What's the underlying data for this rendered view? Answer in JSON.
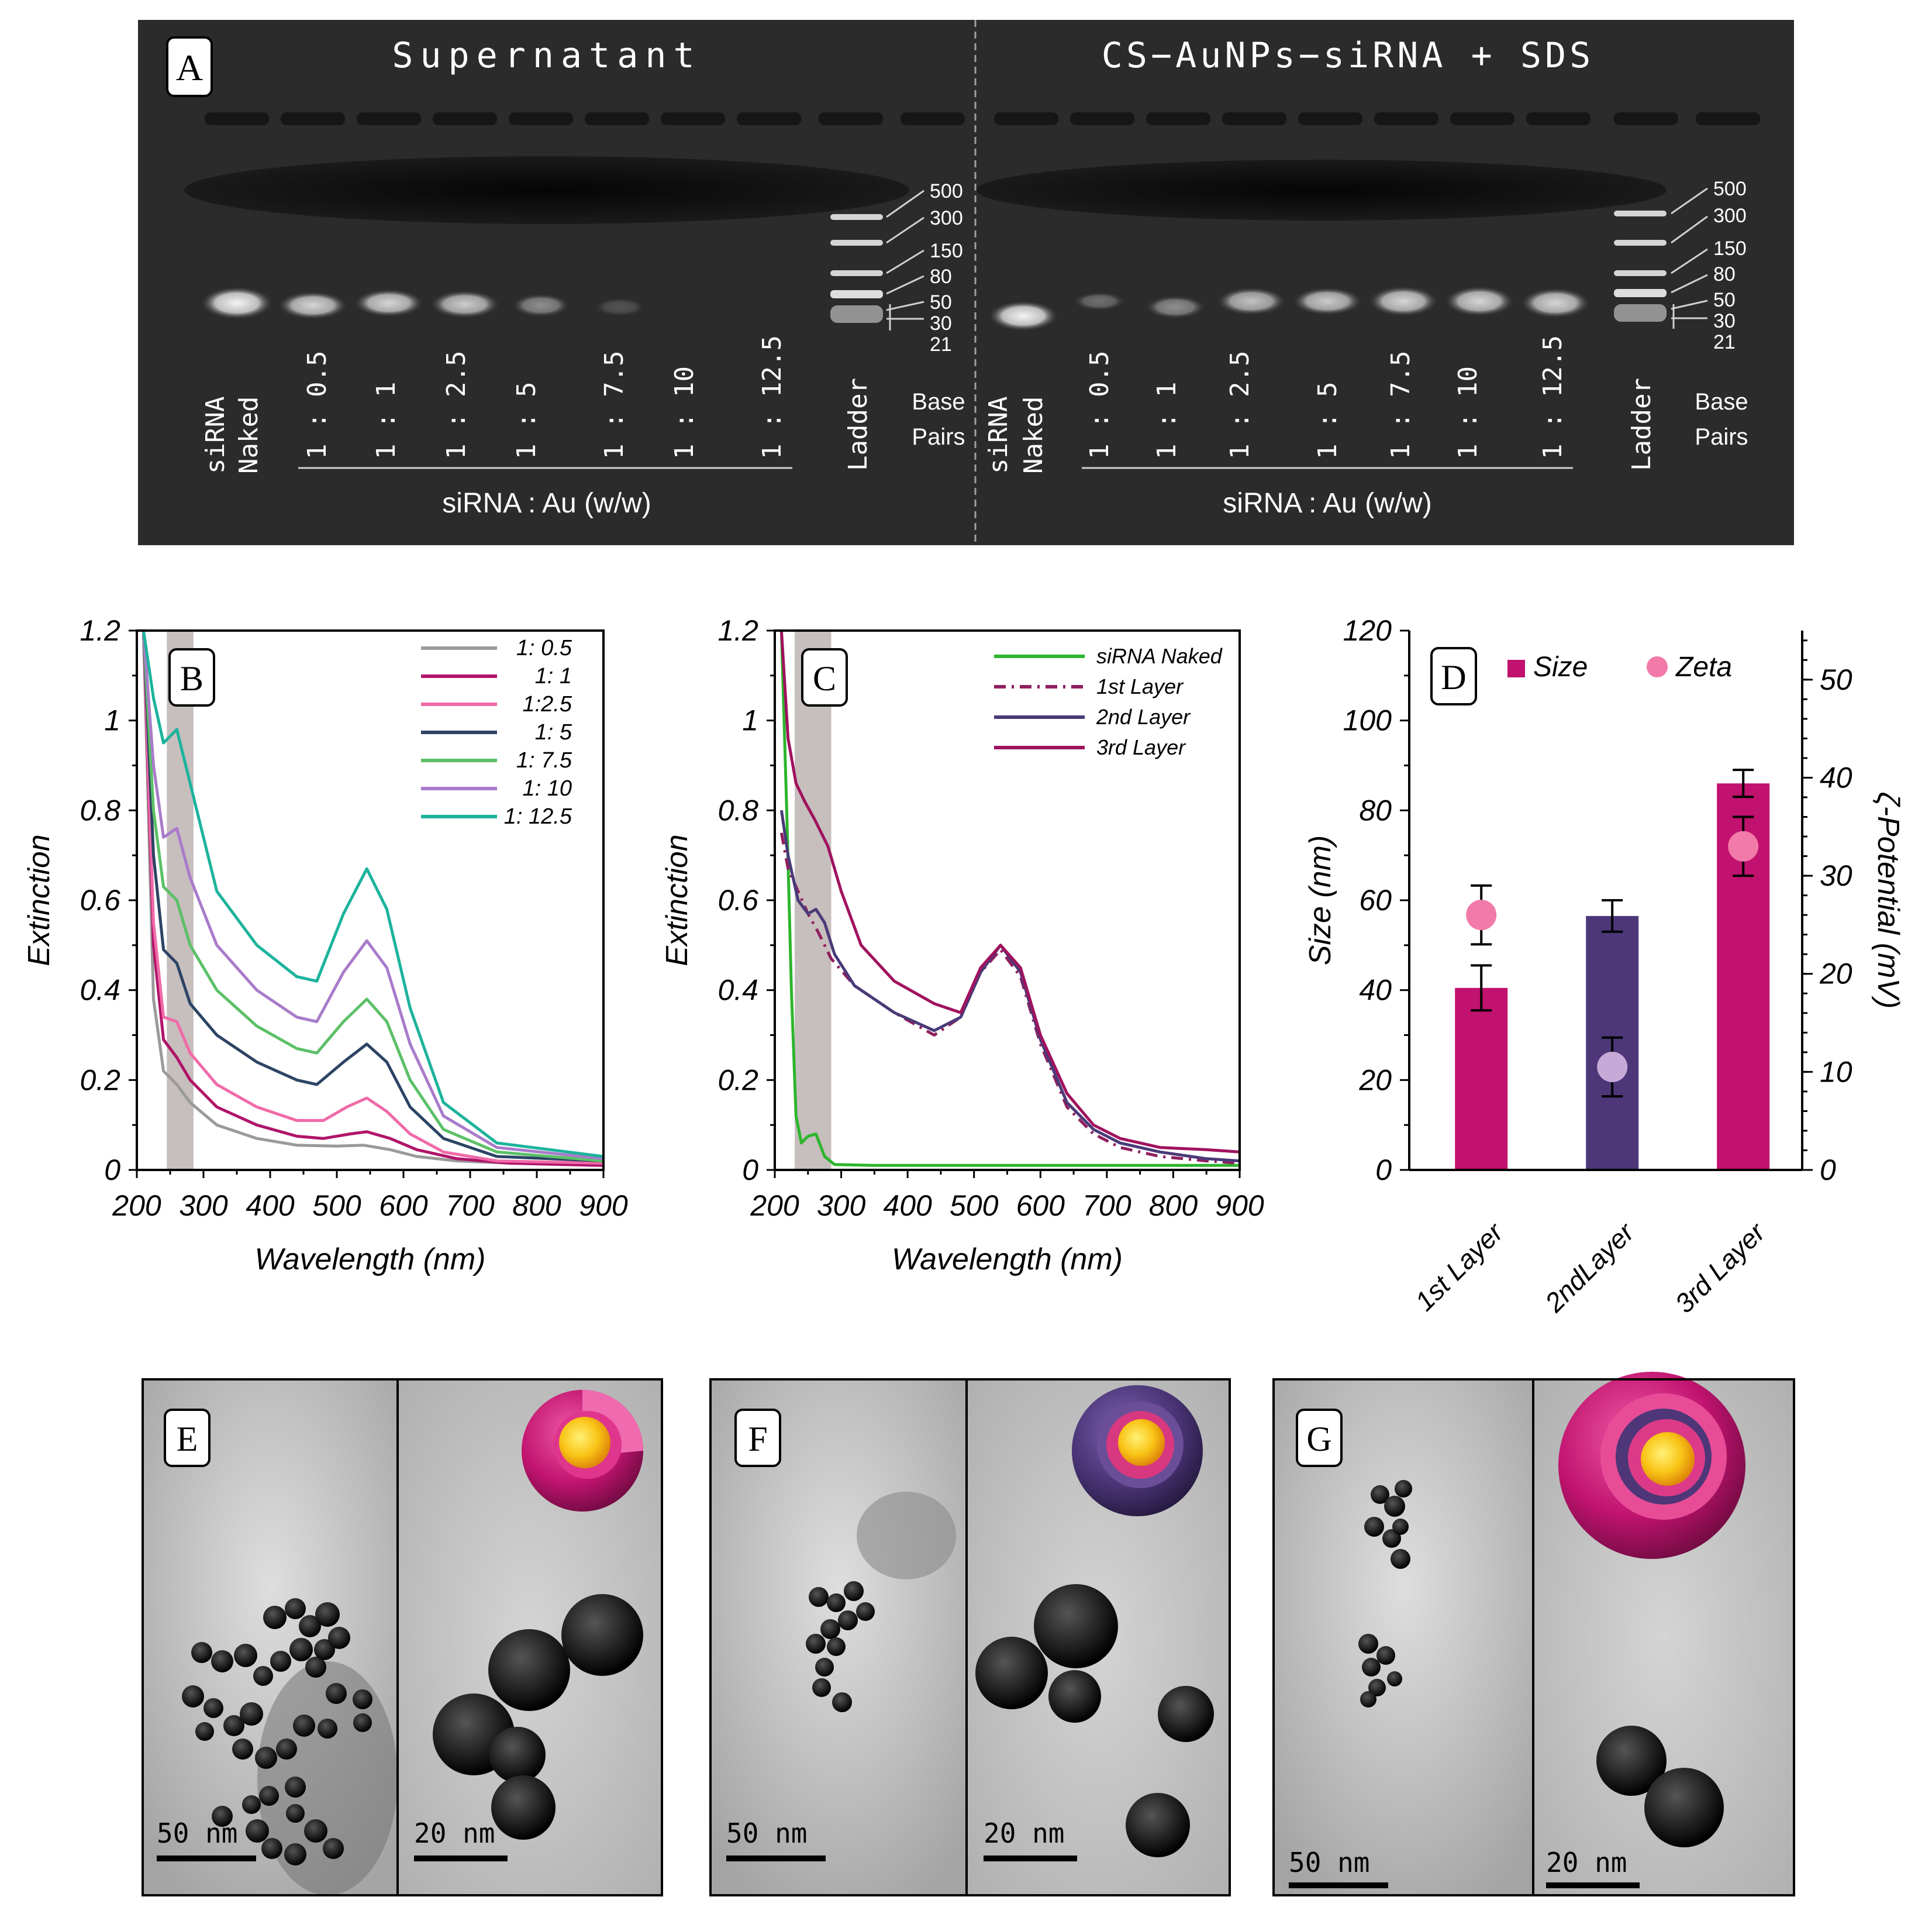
{
  "panel_labels": {
    "a": "A",
    "b": "B",
    "c": "C",
    "d": "D",
    "e": "E",
    "f": "F",
    "g": "G"
  },
  "gel": {
    "left_title": "Supernatant",
    "right_title": "CS−AuNPs−siRNA + SDS",
    "lanes": [
      "siRNA",
      "Naked",
      "1 : 0.5",
      "1 : 1",
      "1 : 2.5",
      "1 : 5",
      "1 : 7.5",
      "1 : 10",
      "1 : 12.5",
      "Ladder"
    ],
    "base_pairs_label_1": "Base",
    "base_pairs_label_2": "Pairs",
    "ratio_caption": "siRNA : Au (w/w)",
    "bp_marks": [
      "500",
      "300",
      "150",
      "80",
      "50",
      "30",
      "21"
    ]
  },
  "chart_data": [
    {
      "id": "B",
      "type": "line",
      "title": "",
      "xlabel": "Wavelength (nm)",
      "ylabel": "Extinction",
      "xlim": [
        200,
        900
      ],
      "ylim": [
        0,
        1.2
      ],
      "xticks": [
        "200",
        "300",
        "400",
        "500",
        "600",
        "700",
        "800",
        "900"
      ],
      "yticks": [
        "0",
        "0.2",
        "0.4",
        "0.6",
        "0.8",
        "1",
        "1.2"
      ],
      "shaded_band_nm": [
        245,
        285
      ],
      "series": [
        {
          "name": "1: 0.5",
          "color": "#9a9a9a",
          "x": [
            210,
            225,
            240,
            260,
            280,
            320,
            380,
            440,
            500,
            540,
            580,
            620,
            680,
            760,
            900
          ],
          "y": [
            1.2,
            0.38,
            0.22,
            0.19,
            0.15,
            0.1,
            0.07,
            0.055,
            0.053,
            0.055,
            0.045,
            0.03,
            0.02,
            0.015,
            0.01
          ]
        },
        {
          "name": "1: 1",
          "color": "#b0146a",
          "x": [
            210,
            225,
            240,
            260,
            280,
            320,
            380,
            440,
            480,
            520,
            545,
            580,
            620,
            680,
            760,
            900
          ],
          "y": [
            1.2,
            0.5,
            0.29,
            0.25,
            0.2,
            0.14,
            0.1,
            0.075,
            0.07,
            0.08,
            0.085,
            0.07,
            0.045,
            0.025,
            0.015,
            0.01
          ]
        },
        {
          "name": "1:2.5",
          "color": "#f06aa8",
          "x": [
            210,
            225,
            240,
            260,
            280,
            320,
            380,
            440,
            480,
            515,
            545,
            575,
            610,
            660,
            740,
            900
          ],
          "y": [
            1.2,
            0.55,
            0.34,
            0.33,
            0.26,
            0.19,
            0.14,
            0.11,
            0.11,
            0.14,
            0.16,
            0.13,
            0.08,
            0.04,
            0.02,
            0.015
          ]
        },
        {
          "name": "1: 5",
          "color": "#2c4464",
          "x": [
            210,
            225,
            240,
            260,
            280,
            320,
            380,
            440,
            470,
            510,
            545,
            575,
            610,
            660,
            740,
            900
          ],
          "y": [
            1.2,
            0.7,
            0.49,
            0.46,
            0.37,
            0.3,
            0.24,
            0.2,
            0.19,
            0.24,
            0.28,
            0.24,
            0.14,
            0.07,
            0.03,
            0.02
          ]
        },
        {
          "name": "1: 7.5",
          "color": "#5cc068",
          "x": [
            210,
            225,
            240,
            260,
            280,
            320,
            380,
            440,
            470,
            510,
            545,
            575,
            610,
            660,
            740,
            900
          ],
          "y": [
            1.2,
            0.8,
            0.63,
            0.6,
            0.5,
            0.4,
            0.32,
            0.27,
            0.26,
            0.33,
            0.38,
            0.33,
            0.2,
            0.09,
            0.04,
            0.02
          ]
        },
        {
          "name": "1: 10",
          "color": "#a97bca",
          "x": [
            210,
            225,
            240,
            260,
            280,
            320,
            380,
            440,
            470,
            510,
            545,
            575,
            610,
            660,
            740,
            900
          ],
          "y": [
            1.2,
            0.9,
            0.74,
            0.76,
            0.65,
            0.5,
            0.4,
            0.34,
            0.33,
            0.44,
            0.51,
            0.45,
            0.28,
            0.12,
            0.05,
            0.025
          ]
        },
        {
          "name": "1: 12.5",
          "color": "#1cb39c",
          "x": [
            210,
            225,
            240,
            260,
            280,
            320,
            380,
            440,
            470,
            510,
            545,
            575,
            610,
            660,
            740,
            900
          ],
          "y": [
            1.2,
            1.05,
            0.95,
            0.98,
            0.86,
            0.62,
            0.5,
            0.43,
            0.42,
            0.57,
            0.67,
            0.58,
            0.36,
            0.15,
            0.06,
            0.03
          ]
        }
      ]
    },
    {
      "id": "C",
      "type": "line",
      "title": "",
      "xlabel": "Wavelength (nm)",
      "ylabel": "Extinction",
      "xlim": [
        200,
        900
      ],
      "ylim": [
        0,
        1.2
      ],
      "xticks": [
        "200",
        "300",
        "400",
        "500",
        "600",
        "700",
        "800",
        "900"
      ],
      "yticks": [
        "0",
        "0.2",
        "0.4",
        "0.6",
        "0.8",
        "1",
        "1.2"
      ],
      "shaded_band_nm": [
        230,
        285
      ],
      "series": [
        {
          "name": "siRNA Naked",
          "color": "#2db52d",
          "dash": "",
          "x": [
            210,
            218,
            225,
            232,
            240,
            250,
            262,
            275,
            290,
            350,
            500,
            900
          ],
          "y": [
            1.2,
            0.8,
            0.4,
            0.12,
            0.06,
            0.075,
            0.08,
            0.03,
            0.012,
            0.01,
            0.01,
            0.01
          ]
        },
        {
          "name": "1st Layer",
          "color": "#8f1f5e",
          "dash": "20,10,4,10",
          "x": [
            210,
            220,
            235,
            250,
            265,
            285,
            320,
            380,
            440,
            480,
            510,
            540,
            570,
            600,
            640,
            680,
            720,
            780,
            850,
            900
          ],
          "y": [
            0.75,
            0.67,
            0.62,
            0.57,
            0.53,
            0.47,
            0.41,
            0.35,
            0.3,
            0.34,
            0.44,
            0.49,
            0.43,
            0.28,
            0.14,
            0.08,
            0.05,
            0.03,
            0.02,
            0.015
          ]
        },
        {
          "name": "2nd Layer",
          "color": "#4a3a78",
          "dash": "",
          "x": [
            210,
            220,
            235,
            250,
            262,
            275,
            290,
            320,
            380,
            440,
            480,
            510,
            540,
            570,
            600,
            640,
            680,
            720,
            780,
            850,
            900
          ],
          "y": [
            0.8,
            0.7,
            0.6,
            0.57,
            0.58,
            0.55,
            0.48,
            0.41,
            0.35,
            0.31,
            0.34,
            0.44,
            0.5,
            0.44,
            0.29,
            0.15,
            0.09,
            0.06,
            0.04,
            0.025,
            0.02
          ]
        },
        {
          "name": "3rd Layer",
          "color": "#a0125e",
          "dash": "",
          "x": [
            210,
            220,
            232,
            245,
            260,
            280,
            300,
            330,
            380,
            440,
            480,
            510,
            540,
            570,
            600,
            640,
            680,
            720,
            780,
            850,
            900
          ],
          "y": [
            1.2,
            0.96,
            0.86,
            0.82,
            0.78,
            0.72,
            0.62,
            0.5,
            0.42,
            0.37,
            0.35,
            0.45,
            0.5,
            0.45,
            0.3,
            0.17,
            0.1,
            0.07,
            0.05,
            0.045,
            0.04
          ]
        }
      ]
    },
    {
      "id": "D",
      "type": "bar",
      "title": "",
      "categories": [
        "1st Layer",
        "2ndLayer",
        "3rd Layer"
      ],
      "series": [
        {
          "name": "Size",
          "axis": "left",
          "values": [
            40.5,
            56.5,
            86
          ],
          "errors": [
            5,
            3.5,
            3
          ],
          "colors": [
            "#c0126e",
            "#4d3778",
            "#c0126e"
          ]
        },
        {
          "name": "Zeta",
          "axis": "right",
          "type": "scatter",
          "values": [
            26,
            10.5,
            33
          ],
          "errors": [
            3,
            3,
            3
          ],
          "colors": [
            "#f27aa8",
            "#c7a9d8",
            "#f27aa8"
          ]
        }
      ],
      "ylabel": "Size (nm)",
      "y2label": "ζ-Potential (mV)",
      "ylim": [
        0,
        120
      ],
      "y2lim": [
        0,
        55
      ],
      "yticks": [
        "0",
        "20",
        "40",
        "60",
        "80",
        "100",
        "120"
      ],
      "y2ticks": [
        "0",
        "10",
        "20",
        "30",
        "40",
        "50"
      ]
    }
  ],
  "tem": {
    "scale_50": "50 nm",
    "scale_20": "20 nm"
  }
}
